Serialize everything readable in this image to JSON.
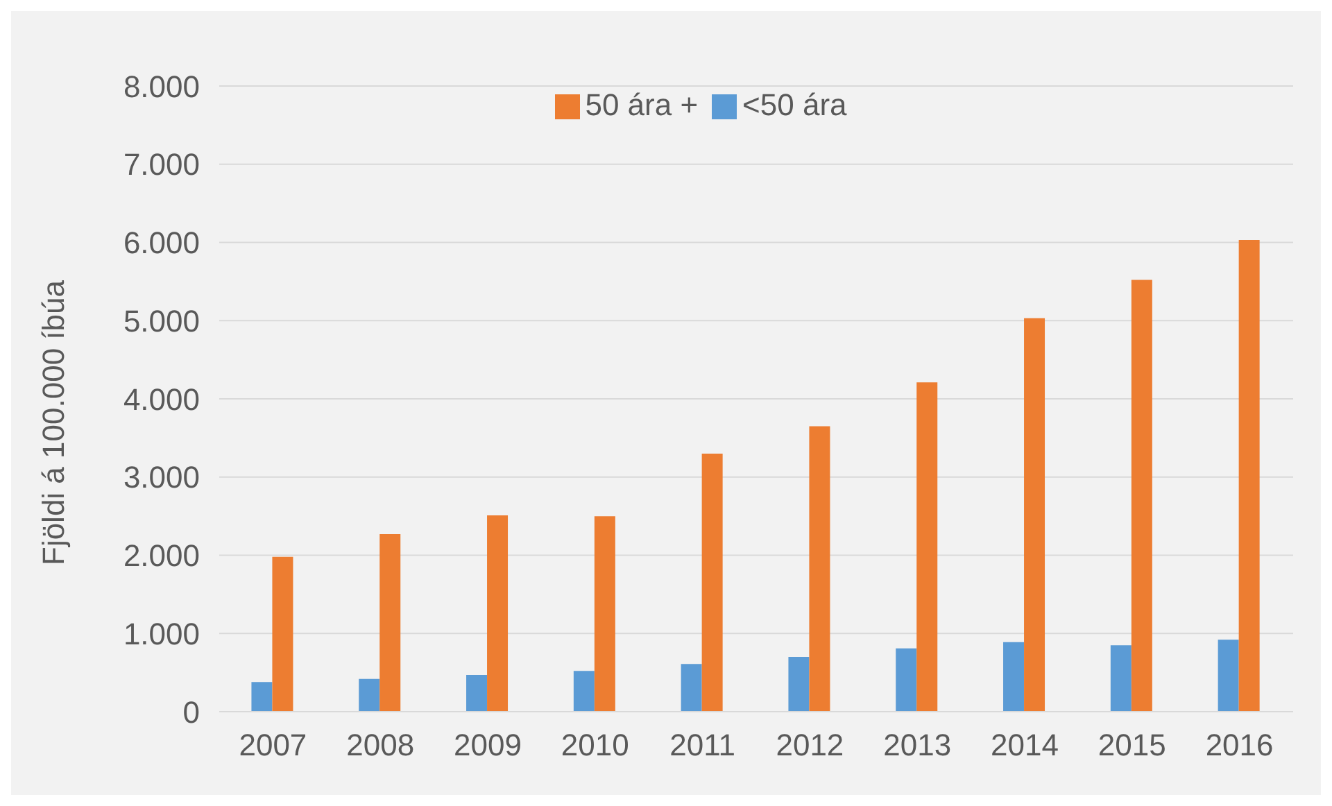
{
  "chart_data": {
    "type": "bar",
    "ylabel": "Fjöldi á 100.000 íbúa",
    "categories": [
      "2007",
      "2008",
      "2009",
      "2010",
      "2011",
      "2012",
      "2013",
      "2014",
      "2015",
      "2016"
    ],
    "series": [
      {
        "name": "<50 ára",
        "color": "#5b9bd5",
        "values": [
          380,
          420,
          470,
          520,
          610,
          700,
          810,
          890,
          850,
          920
        ]
      },
      {
        "name": "50 ára +",
        "color": "#ed7d31",
        "values": [
          1980,
          2270,
          2510,
          2500,
          3300,
          3650,
          4210,
          5030,
          5520,
          6030
        ]
      }
    ],
    "ylim": [
      0,
      8000
    ],
    "yticks": [
      {
        "value": 0,
        "label": "0"
      },
      {
        "value": 1000,
        "label": "1.000"
      },
      {
        "value": 2000,
        "label": "2.000"
      },
      {
        "value": 3000,
        "label": "3.000"
      },
      {
        "value": 4000,
        "label": "4.000"
      },
      {
        "value": 5000,
        "label": "5.000"
      },
      {
        "value": 6000,
        "label": "6.000"
      },
      {
        "value": 7000,
        "label": "7.000"
      },
      {
        "value": 8000,
        "label": "8.000"
      }
    ],
    "grid": "y",
    "legend": "top"
  }
}
